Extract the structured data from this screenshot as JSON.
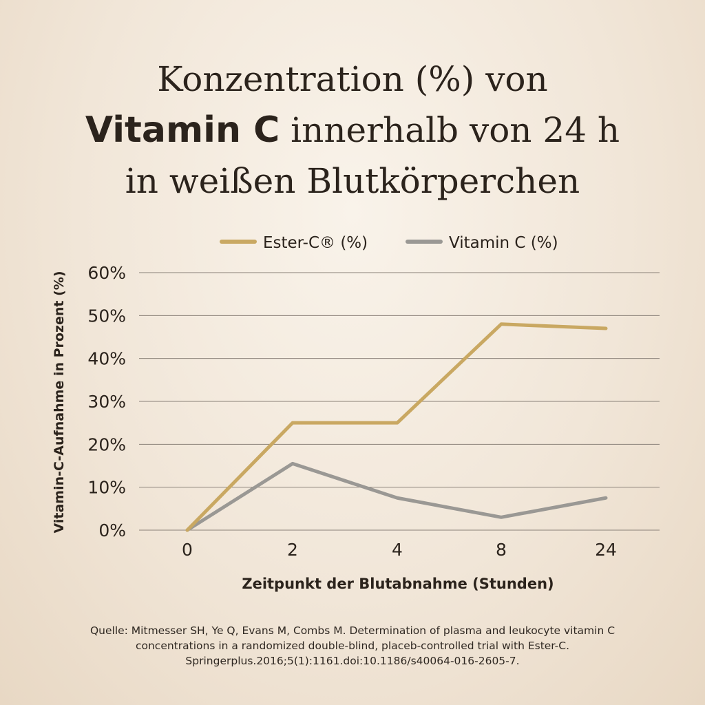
{
  "title": {
    "line1": "Konzentration (%) von",
    "line2_bold": "Vitamin C",
    "line2_rest": " innerhalb von 24 h",
    "line3": "in weißen Blutkörperchen"
  },
  "colors": {
    "ester": "#c9a862",
    "vitc": "#9a9894",
    "grid": "#8a8178"
  },
  "chart_data": {
    "type": "line",
    "categories": [
      "0",
      "2",
      "4",
      "8",
      "24"
    ],
    "series": [
      {
        "name": "Ester-C® (%)",
        "values": [
          0,
          25,
          25,
          48,
          47
        ]
      },
      {
        "name": "Vitamin C (%)",
        "values": [
          0,
          15.5,
          7.5,
          3,
          7.5
        ]
      }
    ],
    "yticks": [
      "0%",
      "10%",
      "20%",
      "30%",
      "40%",
      "50%",
      "60%"
    ],
    "ylim": [
      0,
      60
    ],
    "xlabel": "Zeitpunkt der Blutabnahme (Stunden)",
    "ylabel": "Vitamin-C-Aufnahme in Prozent (%)",
    "legend_position": "top",
    "grid": true
  },
  "source": {
    "line1": "Quelle: Mitmesser SH, Ye Q, Evans M, Combs M. Determination of plasma and leukocyte vitamin C",
    "line2": "concentrations in a randomized double-blind, placeb-controlled trial with Ester-C.",
    "line3": "Springerplus.2016;5(1):1161.doi:10.1186/s40064-016-2605-7."
  }
}
